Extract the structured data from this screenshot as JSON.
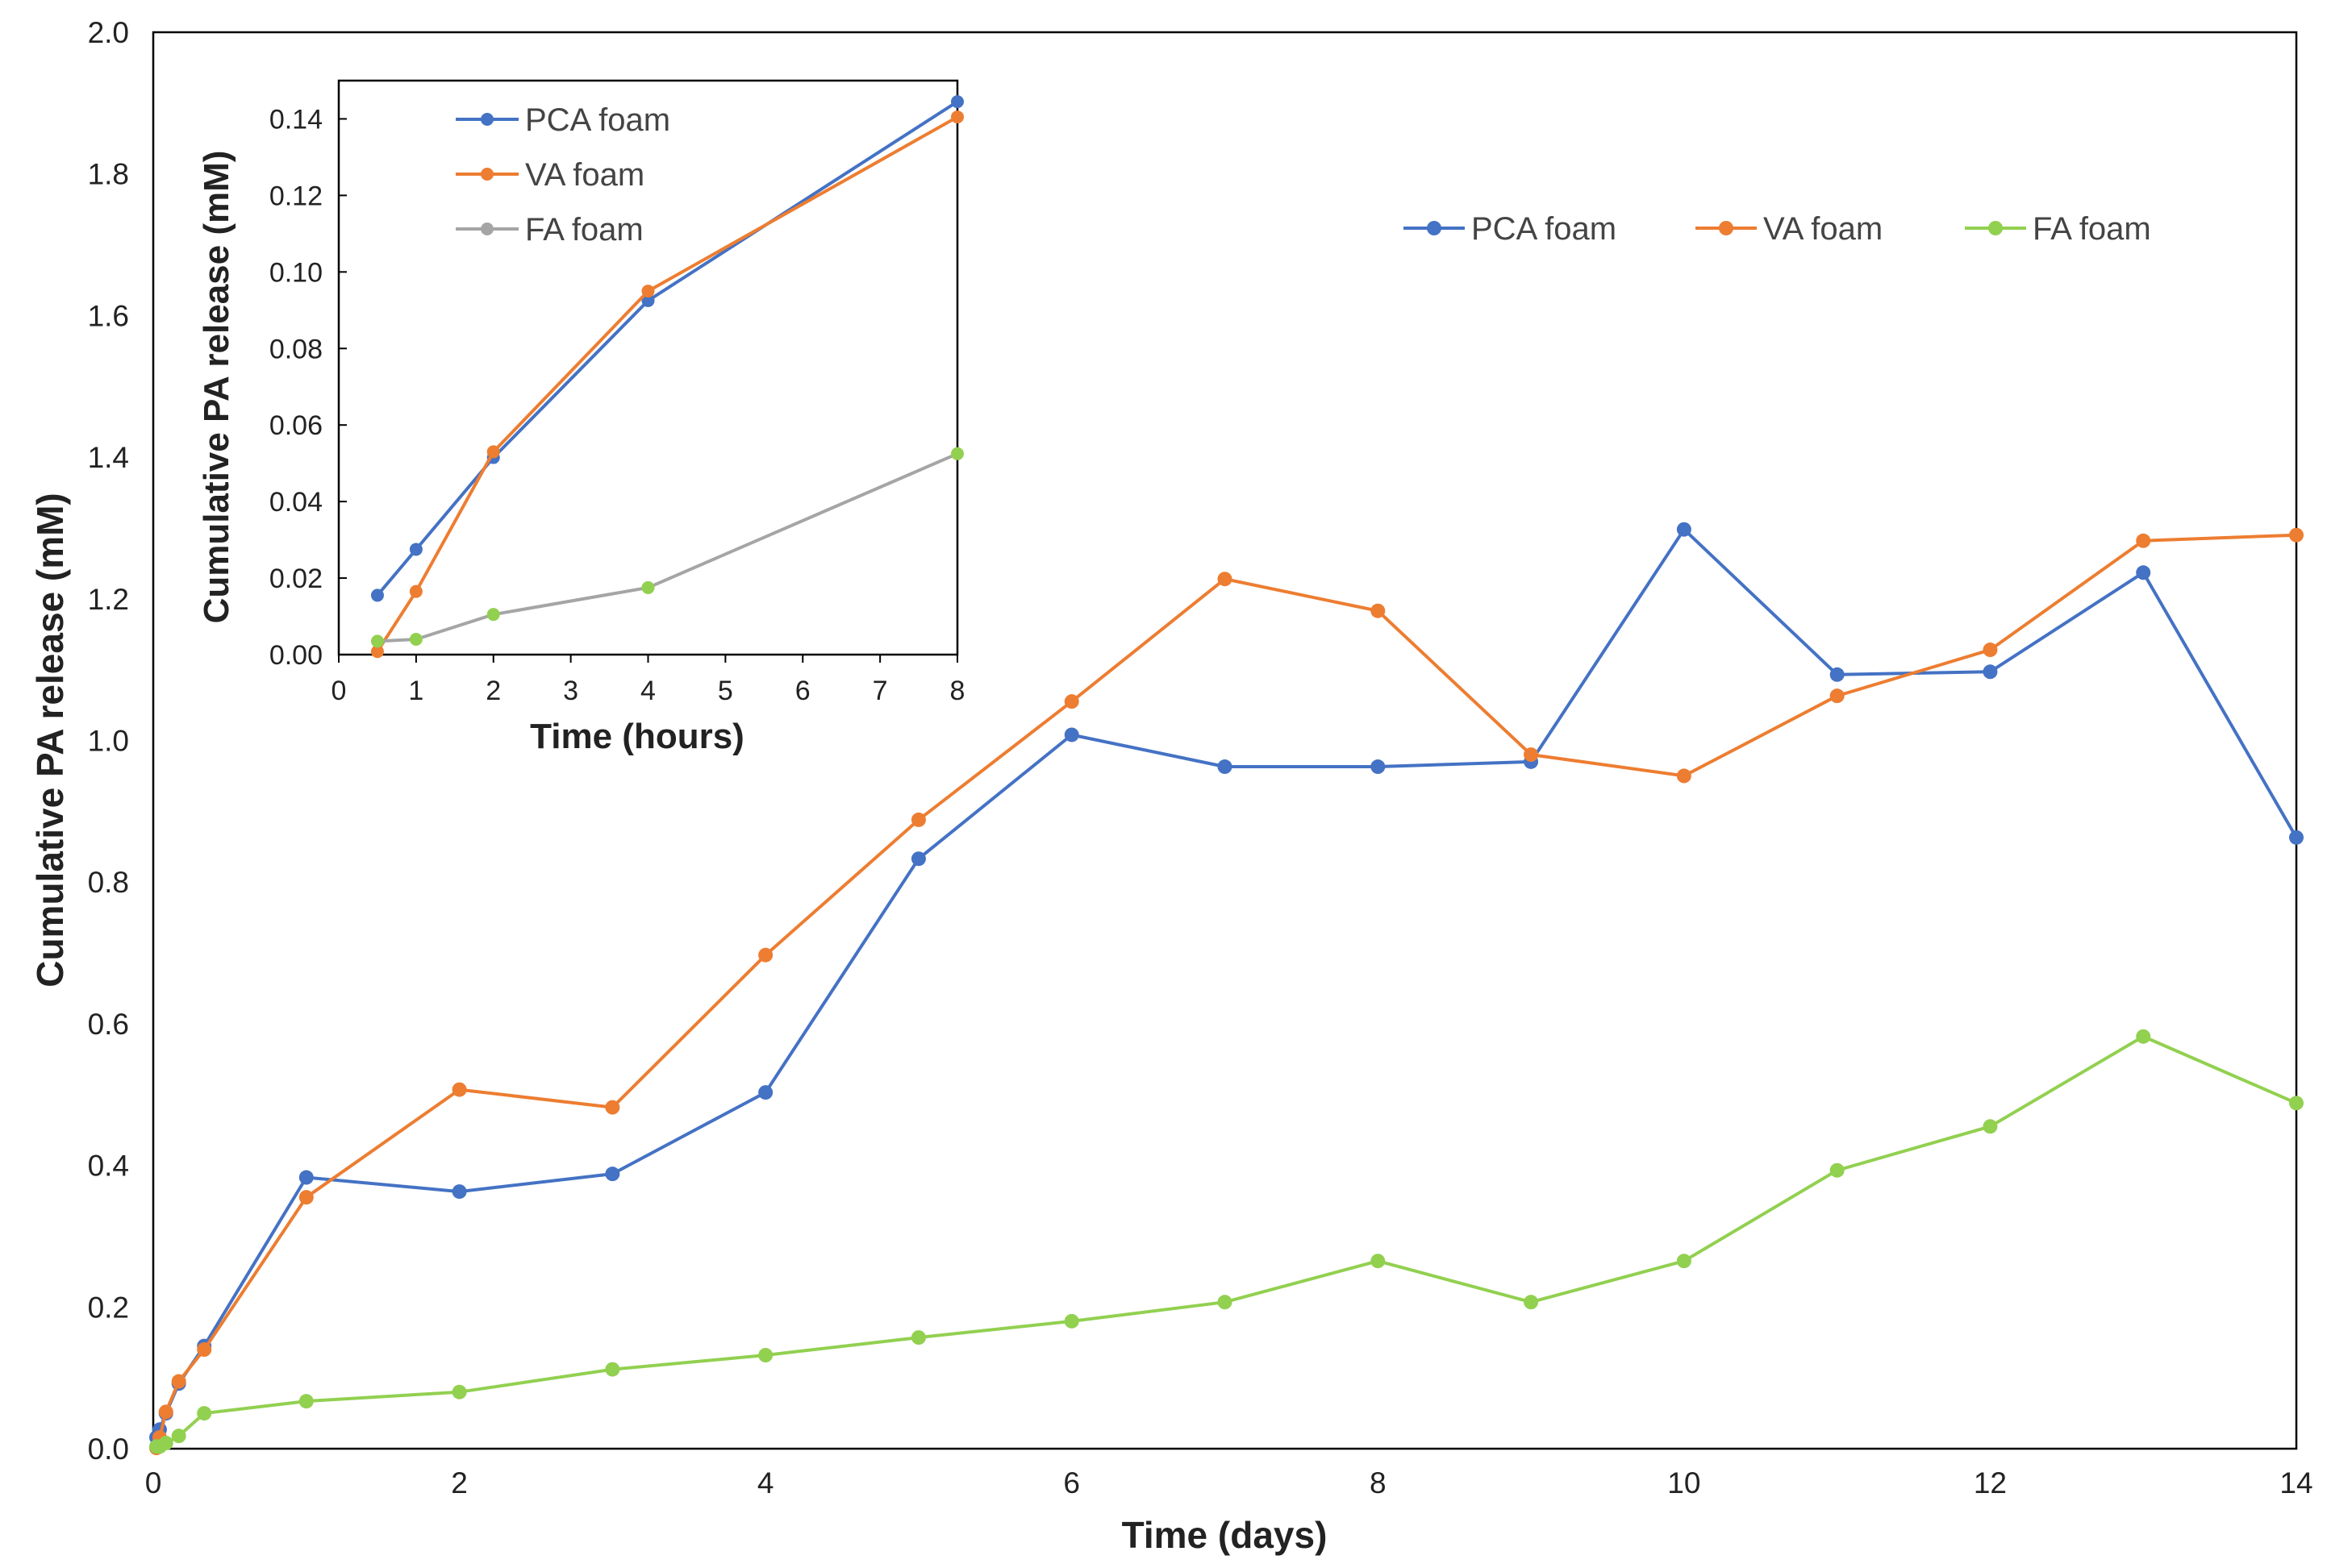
{
  "chart_data": [
    {
      "type": "line",
      "title": "",
      "xlabel": "Time (days)",
      "ylabel": "Cumulative PA release (mM)",
      "xlim": [
        0,
        14
      ],
      "ylim": [
        0,
        2.0
      ],
      "xticks": [
        0,
        2,
        4,
        6,
        8,
        10,
        12,
        14
      ],
      "xtick_labels": [
        "0",
        "2",
        "4",
        "6",
        "8",
        "10",
        "12",
        "14"
      ],
      "yticks": [
        0,
        0.2,
        0.4,
        0.6,
        0.8,
        1.0,
        1.2,
        1.4,
        1.6,
        1.8,
        2.0
      ],
      "ytick_labels": [
        "0.0",
        "0.2",
        "0.4",
        "0.6",
        "0.8",
        "1.0",
        "1.2",
        "1.4",
        "1.6",
        "1.8",
        "2.0"
      ],
      "grid": false,
      "legend_position": "top-right",
      "series": [
        {
          "name": "PCA foam",
          "color": "#4472C4",
          "x": [
            0.021,
            0.042,
            0.083,
            0.167,
            0.333,
            1,
            2,
            3,
            4,
            5,
            6,
            7,
            8,
            9,
            10,
            11,
            12,
            13,
            14
          ],
          "y": [
            0.016,
            0.027,
            0.05,
            0.092,
            0.145,
            0.383,
            0.363,
            0.388,
            0.503,
            0.833,
            1.008,
            0.963,
            0.963,
            0.97,
            1.298,
            1.093,
            1.097,
            1.237,
            0.863
          ]
        },
        {
          "name": "VA foam",
          "color": "#ED7D31",
          "x": [
            0.021,
            0.042,
            0.083,
            0.167,
            0.333,
            1,
            2,
            3,
            4,
            5,
            6,
            7,
            8,
            9,
            10,
            11,
            12,
            13,
            14
          ],
          "y": [
            0.001,
            0.016,
            0.052,
            0.095,
            0.14,
            0.355,
            0.507,
            0.482,
            0.697,
            0.888,
            1.055,
            1.228,
            1.183,
            0.98,
            0.95,
            1.063,
            1.128,
            1.282,
            1.29
          ]
        },
        {
          "name": "FA foam",
          "color": "#92D050",
          "x": [
            0.021,
            0.042,
            0.083,
            0.167,
            0.333,
            1,
            2,
            3,
            4,
            5,
            6,
            7,
            8,
            9,
            10,
            11,
            12,
            13,
            14
          ],
          "y": [
            0.003,
            0.003,
            0.008,
            0.018,
            0.05,
            0.067,
            0.08,
            0.112,
            0.132,
            0.157,
            0.18,
            0.207,
            0.265,
            0.207,
            0.265,
            0.393,
            0.455,
            0.582,
            0.488
          ]
        }
      ]
    },
    {
      "type": "line",
      "title": "",
      "xlabel": "Time (hours)",
      "ylabel": "Cumulative PA release (mM)",
      "xlim": [
        0,
        8
      ],
      "ylim": [
        0,
        0.15
      ],
      "xticks": [
        0,
        1,
        2,
        3,
        4,
        5,
        6,
        7,
        8
      ],
      "xtick_labels": [
        "0",
        "1",
        "2",
        "3",
        "4",
        "5",
        "6",
        "7",
        "8"
      ],
      "yticks": [
        0,
        0.02,
        0.04,
        0.06,
        0.08,
        0.1,
        0.12,
        0.14
      ],
      "ytick_labels": [
        "0.00",
        "0.02",
        "0.04",
        "0.06",
        "0.08",
        "0.10",
        "0.12",
        "0.14"
      ],
      "grid": false,
      "legend_position": "top-left",
      "series": [
        {
          "name": "PCA foam",
          "color": "#4472C4",
          "x": [
            0.5,
            1,
            2,
            4,
            8
          ],
          "y": [
            0.0155,
            0.0275,
            0.0515,
            0.0925,
            0.1445
          ]
        },
        {
          "name": "VA foam",
          "color": "#ED7D31",
          "x": [
            0.5,
            1,
            2,
            4,
            8
          ],
          "y": [
            0.0008,
            0.0165,
            0.053,
            0.095,
            0.1405
          ]
        },
        {
          "name": "FA foam",
          "color": "#A5A5A5",
          "marker_color": "#92D050",
          "x": [
            0.5,
            1,
            2,
            4,
            8
          ],
          "y": [
            0.0035,
            0.004,
            0.0105,
            0.0175,
            0.0525
          ]
        }
      ]
    }
  ]
}
